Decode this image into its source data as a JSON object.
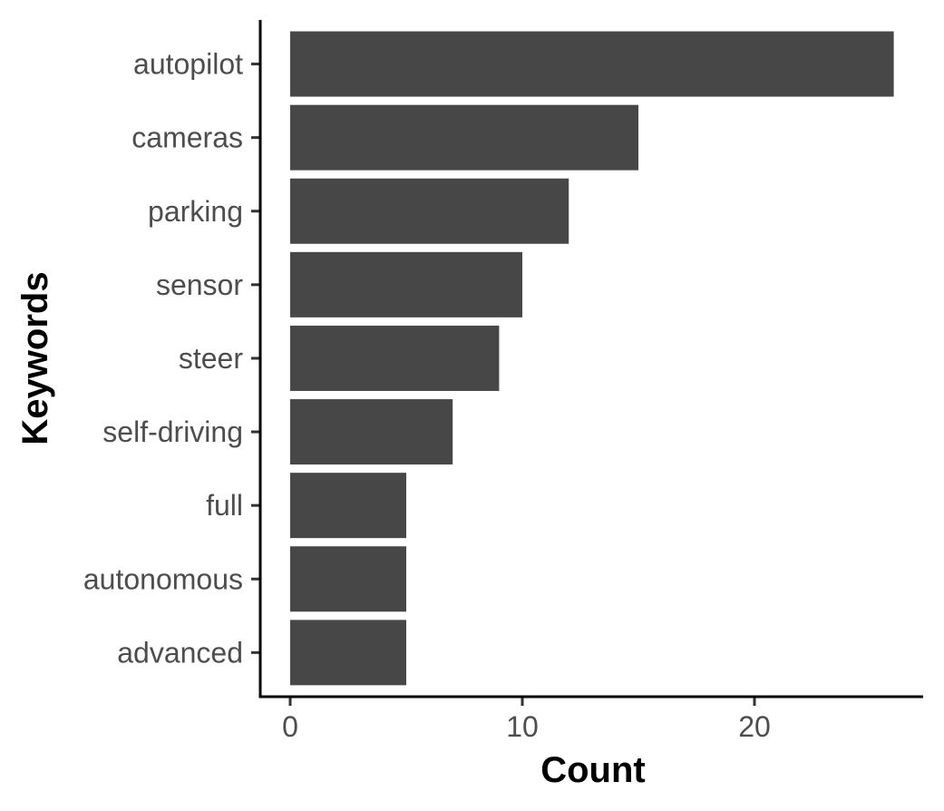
{
  "chart_data": {
    "type": "bar",
    "orientation": "horizontal",
    "categories": [
      "autopilot",
      "cameras",
      "parking",
      "sensor",
      "steer",
      "self-driving",
      "full",
      "autonomous",
      "advanced"
    ],
    "values": [
      26,
      15,
      12,
      10,
      9,
      7,
      5,
      5,
      5
    ],
    "xlabel": "Count",
    "ylabel": "Keywords",
    "xlim": [
      0,
      27.3
    ],
    "x_ticks": [
      0,
      10,
      20
    ],
    "grid": false,
    "colors": {
      "bar": "#474747",
      "axis": "#000000",
      "tick_label": "#4d4d4d"
    }
  }
}
